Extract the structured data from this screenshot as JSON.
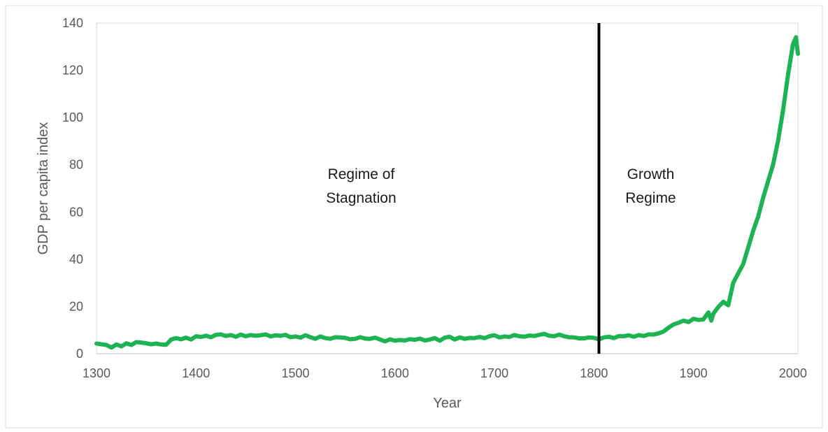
{
  "chart_data": {
    "type": "line",
    "title": "",
    "xlabel": "Year",
    "ylabel": "GDP per capita index",
    "xlim": [
      1300,
      2005
    ],
    "ylim": [
      0,
      140
    ],
    "x_ticks": [
      1300,
      1400,
      1500,
      1600,
      1700,
      1800,
      1900,
      2000
    ],
    "y_ticks": [
      0,
      20,
      40,
      60,
      80,
      100,
      120,
      140
    ],
    "grid": false,
    "legend": "none",
    "series": [
      {
        "color": "#1db352",
        "x": [
          1300,
          1305,
          1310,
          1315,
          1320,
          1325,
          1330,
          1335,
          1340,
          1345,
          1350,
          1355,
          1360,
          1365,
          1370,
          1375,
          1380,
          1385,
          1390,
          1395,
          1400,
          1405,
          1410,
          1415,
          1420,
          1425,
          1430,
          1435,
          1440,
          1445,
          1450,
          1455,
          1460,
          1465,
          1470,
          1475,
          1480,
          1485,
          1490,
          1495,
          1500,
          1505,
          1510,
          1515,
          1520,
          1525,
          1530,
          1535,
          1540,
          1545,
          1550,
          1555,
          1560,
          1565,
          1570,
          1575,
          1580,
          1585,
          1590,
          1595,
          1600,
          1605,
          1610,
          1615,
          1620,
          1625,
          1630,
          1635,
          1640,
          1645,
          1650,
          1655,
          1660,
          1665,
          1670,
          1675,
          1680,
          1685,
          1690,
          1695,
          1700,
          1705,
          1710,
          1715,
          1720,
          1725,
          1730,
          1735,
          1740,
          1745,
          1750,
          1755,
          1760,
          1765,
          1770,
          1775,
          1780,
          1785,
          1790,
          1795,
          1800,
          1805,
          1810,
          1815,
          1820,
          1825,
          1830,
          1835,
          1840,
          1845,
          1850,
          1855,
          1860,
          1865,
          1870,
          1875,
          1880,
          1885,
          1890,
          1895,
          1900,
          1905,
          1910,
          1915,
          1918,
          1920,
          1925,
          1930,
          1935,
          1940,
          1945,
          1950,
          1955,
          1960,
          1965,
          1970,
          1975,
          1980,
          1985,
          1990,
          1995,
          2000,
          2003,
          2005
        ],
        "values": [
          4.3,
          4.0,
          3.7,
          2.6,
          3.9,
          3.1,
          4.4,
          3.7,
          4.9,
          4.7,
          4.4,
          4.0,
          4.3,
          3.9,
          3.8,
          6.0,
          6.6,
          6.1,
          6.8,
          6.0,
          7.4,
          7.1,
          7.6,
          7.0,
          8.0,
          8.2,
          7.5,
          7.9,
          7.2,
          8.1,
          7.4,
          7.9,
          7.6,
          7.8,
          8.2,
          7.3,
          7.8,
          7.6,
          8.0,
          7.0,
          7.3,
          6.8,
          7.8,
          7.0,
          6.3,
          7.3,
          6.6,
          6.3,
          7.0,
          6.9,
          6.7,
          6.1,
          6.3,
          7.0,
          6.4,
          6.3,
          6.8,
          6.0,
          5.2,
          6.1,
          5.5,
          5.8,
          5.6,
          6.2,
          5.9,
          6.4,
          5.6,
          6.0,
          6.6,
          5.5,
          6.8,
          7.2,
          6.0,
          6.9,
          6.3,
          6.7,
          6.6,
          7.1,
          6.6,
          7.4,
          7.8,
          6.9,
          7.3,
          7.1,
          7.9,
          7.4,
          7.2,
          7.7,
          7.5,
          8.0,
          8.4,
          7.6,
          7.4,
          8.1,
          7.4,
          7.0,
          6.9,
          6.5,
          6.5,
          6.9,
          6.7,
          6.1,
          6.9,
          7.2,
          6.6,
          7.5,
          7.4,
          7.8,
          7.2,
          7.9,
          7.5,
          8.2,
          8.1,
          8.6,
          9.4,
          11.0,
          12.4,
          13.1,
          14.0,
          13.4,
          14.8,
          14.3,
          14.5,
          17.5,
          14.0,
          17.0,
          19.8,
          22.0,
          20.5,
          30.0,
          34.0,
          38.0,
          45.0,
          52.0,
          58.0,
          66.0,
          73.0,
          80.0,
          90.0,
          103.0,
          118.0,
          131.0,
          134.0,
          127.0
        ]
      }
    ],
    "vertical_line": {
      "x": 1805,
      "color": "#000000"
    },
    "annotations": [
      {
        "lines": [
          "Regime of",
          "Stagnation"
        ],
        "x": 1566,
        "y": 74
      },
      {
        "lines": [
          "Growth",
          "Regime"
        ],
        "x": 1857,
        "y": 74
      }
    ]
  }
}
